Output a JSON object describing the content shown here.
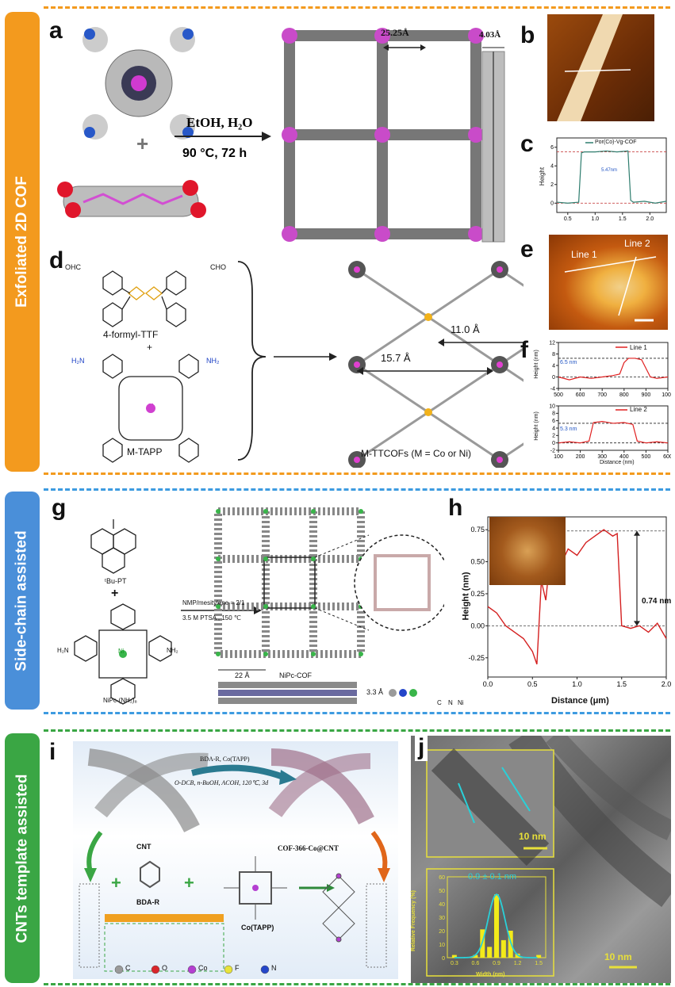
{
  "sections": [
    {
      "title": "Exfoliated 2D COF",
      "color": "#f39a1e"
    },
    {
      "title": "Side-chain assisted",
      "color": "#4a8fd9"
    },
    {
      "title": "CNTs template assisted",
      "color": "#3aa644"
    }
  ],
  "panel_letters": {
    "a": "a",
    "b": "b",
    "c": "c",
    "d": "d",
    "e": "e",
    "f": "f",
    "g": "g",
    "h": "h",
    "i": "i",
    "j": "j"
  },
  "panel_a": {
    "reagents": "EtOH, H₂O",
    "conditions": "90 °C, 72 h",
    "pore_size": "25.25Å",
    "layer_spacing": "4.03Å"
  },
  "panel_c": {
    "legend": "Por(Co)-Vg-COF",
    "annotation": "5.47nm",
    "ylabel": "Height",
    "xticks": [
      "0.5",
      "1.0",
      "1.5",
      "2.0"
    ],
    "yticks": [
      "0",
      "2",
      "4",
      "6"
    ]
  },
  "panel_d": {
    "monomer1": "4-formyl-TTF",
    "plus": "+",
    "monomer2": "M-TAPP",
    "product": "M-TTCOFs (M = Co or Ni)",
    "dist1": "11.0 Å",
    "dist2": "15.7 Å",
    "cho": "OHC",
    "cho2": "CHO",
    "nh2": "H₂N",
    "nh2b": "NH₂",
    "metal": "M"
  },
  "panel_e": {
    "line1": "Line 1",
    "line2": "Line 2"
  },
  "panel_f": {
    "top": {
      "legend": "Line 1",
      "annotation": "6.5 nm",
      "ylabel": "Height (nm)",
      "xticks": [
        "500",
        "600",
        "700",
        "800",
        "900",
        "1000"
      ],
      "yticks": [
        "12",
        "8",
        "4",
        "0",
        "-4"
      ]
    },
    "bottom": {
      "legend": "Line 2",
      "annotation": "5.3 nm",
      "ylabel": "Height (nm)",
      "xlabel": "Distance (nm)",
      "xticks": [
        "100",
        "200",
        "300",
        "400",
        "500",
        "600"
      ],
      "yticks": [
        "10",
        "8",
        "6",
        "4",
        "2",
        "0",
        "-2"
      ]
    }
  },
  "panel_g": {
    "monomer1": "ᵗBu-PT",
    "plus": "+",
    "monomer2": "NiPc-(NH₂)₈",
    "conditions1": "NMP/mesitylene = 2/1",
    "conditions2": "3.5 M PTSA , 150 ℃",
    "pore": "22 Å",
    "product": "NiPc-COF",
    "layer": "3.3 Å",
    "legend_atoms": [
      "C",
      "N",
      "Ni"
    ],
    "h2n": "H₂N",
    "nh2": "NH₂",
    "ni": "Ni"
  },
  "panel_h": {
    "ylabel": "Height (nm)",
    "xlabel": "Distance (μm)",
    "annotation": "0.74 nm",
    "xticks": [
      "0.0",
      "0.5",
      "1.0",
      "1.5",
      "2.0"
    ],
    "yticks": [
      "0.75",
      "0.50",
      "0.25",
      "0.00",
      "-0.25"
    ]
  },
  "panel_i": {
    "reagent1": "BDA-R, Co(TAPP)",
    "reagent2": "O-DCB, n-BuOH, ACOH, 120℃, 3d",
    "cnt": "CNT",
    "product": "COF-366-Co@CNT",
    "bda": "BDA-R",
    "cotapp": "Co(TAPP)",
    "legend": [
      "C",
      "O",
      "Co",
      "F",
      "N"
    ],
    "legend_colors": [
      "#9a9a9a",
      "#d9262b",
      "#b43fd1",
      "#e8e33a",
      "#2446c9"
    ]
  },
  "panel_j": {
    "scale1": "10 nm",
    "scale2": "10 nm",
    "mean": "0.9 ± 0.1 nm",
    "ylabel": "Relative Frequency (%)",
    "xlabel": "Width (nm)",
    "yticks": [
      "60",
      "50",
      "40",
      "30",
      "20",
      "10",
      "0"
    ],
    "xticks": [
      "0.3",
      "0.6",
      "0.9",
      "1.2",
      "1.5"
    ]
  },
  "chart_data": [
    {
      "type": "line",
      "title": "",
      "xlabel": "",
      "ylabel": "Height",
      "series": [
        {
          "name": "Por(Co)-Vg-COF",
          "x": [
            0.3,
            0.5,
            0.7,
            0.75,
            0.8,
            1.0,
            1.2,
            1.4,
            1.6,
            1.65,
            1.7,
            1.9,
            2.1,
            2.3
          ],
          "y": [
            0.1,
            0.0,
            0.1,
            5.4,
            5.5,
            5.5,
            5.6,
            5.5,
            5.6,
            0.3,
            0.1,
            0.2,
            0.0,
            0.2
          ]
        }
      ],
      "xlim": [
        0.3,
        2.3
      ],
      "ylim": [
        -1,
        7
      ]
    },
    {
      "type": "line",
      "xlabel": "",
      "ylabel": "Height (nm)",
      "series": [
        {
          "name": "Line 1",
          "x": [
            500,
            550,
            600,
            650,
            700,
            750,
            780,
            800,
            820,
            850,
            880,
            900,
            920,
            950,
            1000
          ],
          "y": [
            0,
            -1,
            0,
            -0.5,
            0,
            0.5,
            1,
            5,
            6.5,
            6.5,
            6,
            3,
            0,
            -0.5,
            0
          ]
        }
      ],
      "xlim": [
        500,
        1000
      ],
      "ylim": [
        -4,
        12
      ]
    },
    {
      "type": "line",
      "xlabel": "Distance (nm)",
      "ylabel": "Height (nm)",
      "series": [
        {
          "name": "Line 2",
          "x": [
            100,
            150,
            200,
            240,
            260,
            300,
            350,
            400,
            440,
            460,
            500,
            550,
            600
          ],
          "y": [
            0,
            0.3,
            0,
            0.5,
            5.5,
            5.8,
            5.3,
            5.5,
            5,
            0.5,
            0,
            0.3,
            0
          ]
        }
      ],
      "xlim": [
        100,
        600
      ],
      "ylim": [
        -2,
        10
      ]
    },
    {
      "type": "line",
      "xlabel": "Distance (μm)",
      "ylabel": "Height (nm)",
      "series": [
        {
          "name": "",
          "x": [
            0.0,
            0.1,
            0.2,
            0.3,
            0.4,
            0.5,
            0.55,
            0.6,
            0.65,
            0.7,
            0.8,
            0.9,
            1.0,
            1.1,
            1.2,
            1.3,
            1.4,
            1.45,
            1.5,
            1.6,
            1.7,
            1.8,
            1.9,
            2.0
          ],
          "y": [
            0.15,
            0.1,
            0.0,
            -0.05,
            -0.1,
            -0.2,
            -0.3,
            0.35,
            0.2,
            0.55,
            0.45,
            0.6,
            0.55,
            0.65,
            0.7,
            0.75,
            0.7,
            0.72,
            0.0,
            -0.02,
            0.0,
            -0.05,
            0.02,
            -0.1
          ]
        }
      ],
      "xlim": [
        0.0,
        2.0
      ],
      "ylim": [
        -0.4,
        0.85
      ]
    },
    {
      "type": "bar",
      "xlabel": "Width (nm)",
      "ylabel": "Relative Frequency (%)",
      "categories": [
        "0.3",
        "0.6",
        "0.7",
        "0.8",
        "0.9",
        "1.0",
        "1.1",
        "1.2",
        "1.5"
      ],
      "values": [
        2,
        2,
        21,
        8,
        47,
        13,
        20,
        3,
        2
      ],
      "xlim": [
        0.2,
        1.6
      ],
      "ylim": [
        0,
        60
      ]
    }
  ]
}
